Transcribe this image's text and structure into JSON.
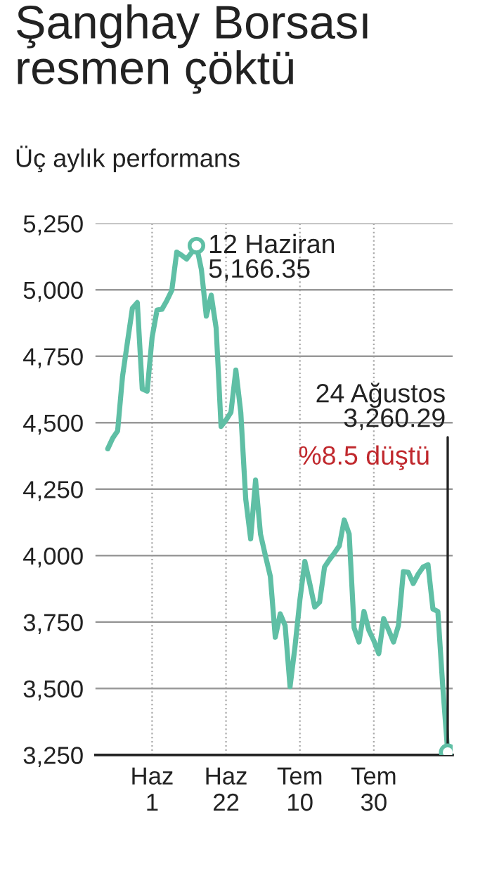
{
  "chart_data": {
    "type": "line",
    "title": "Şanghay Borsası\nresmen çöktü",
    "subtitle": "Üç aylık performans",
    "categories": [
      null,
      null,
      null,
      null,
      null,
      null,
      null,
      null,
      null,
      "Haz\n1",
      null,
      null,
      null,
      null,
      null,
      null,
      null,
      null,
      null,
      null,
      null,
      null,
      null,
      null,
      "Haz\n22",
      null,
      null,
      null,
      null,
      null,
      null,
      null,
      null,
      null,
      null,
      null,
      null,
      null,
      null,
      "Tem\n10",
      null,
      null,
      null,
      null,
      null,
      null,
      null,
      null,
      null,
      null,
      null,
      null,
      null,
      null,
      "Tem\n30",
      null,
      null,
      null,
      null,
      null,
      null,
      null,
      null,
      null,
      null,
      null,
      null,
      null,
      null,
      null
    ],
    "series": [
      {
        "color": "#5fbfa5",
        "values": [
          4402,
          4442,
          4469,
          4675,
          4804,
          4931,
          4952,
          4627,
          4619,
          4821,
          4924,
          4927,
          4960,
          4998,
          5142,
          5130,
          5116,
          5140,
          5166.35,
          5077,
          4901,
          4980,
          4856,
          4486,
          4510,
          4539,
          4698,
          4539,
          4213,
          4063,
          4284,
          4081,
          4000,
          3922,
          3693,
          3781,
          3737,
          3507,
          3657,
          3834,
          3978,
          3895,
          3807,
          3825,
          3957,
          3985,
          4010,
          4037,
          4134,
          4081,
          3728,
          3675,
          3790,
          3719,
          3680,
          3631,
          3763,
          3720,
          3675,
          3737,
          3940,
          3937,
          3895,
          3930,
          3957,
          3966,
          3799,
          3790,
          3507,
          3260.29
        ]
      }
    ],
    "ylim": [
      3250,
      5250
    ],
    "yticks": [
      {
        "value": 3250,
        "label": "3,250"
      },
      {
        "value": 3500,
        "label": "3,500"
      },
      {
        "value": 3750,
        "label": "3,750"
      },
      {
        "value": 4000,
        "label": "4,000"
      },
      {
        "value": 4250,
        "label": "4,250"
      },
      {
        "value": 4500,
        "label": "4,500"
      },
      {
        "value": 4750,
        "label": "4,750"
      },
      {
        "value": 5000,
        "label": "5,000"
      },
      {
        "value": 5250,
        "label": "5,250"
      }
    ],
    "grid": true,
    "marker": "none",
    "line_style": "solid",
    "annotations": [
      "12 Haziran\n5,166.35",
      "24 Ağustos\n3,260.29",
      "%8.5 düştü"
    ]
  }
}
